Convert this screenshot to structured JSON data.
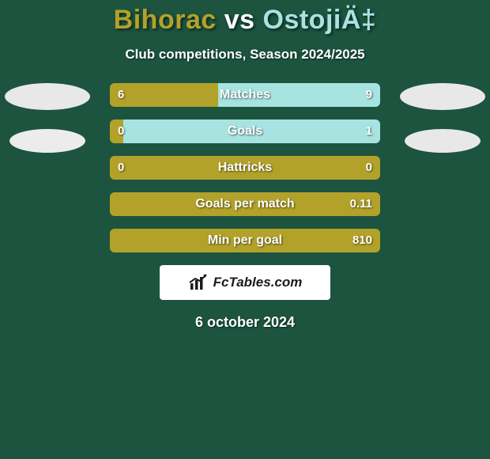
{
  "background_color": "#1c543f",
  "title": {
    "player_a": "Bihorac",
    "vs": "vs",
    "player_b": "OstojiÄ‡",
    "color_a": "#b2a22a",
    "color_vs": "#ffffff",
    "color_b": "#a7e3e0",
    "fontsize": 34
  },
  "subtitle": {
    "text": "Club competitions, Season 2024/2025",
    "fontsize": 17
  },
  "avatars": {
    "left_primary_color": "#e8e8e8",
    "left_secondary_color": "#ececec",
    "right_primary_color": "#e8e8e8",
    "right_secondary_color": "#e8e8e8"
  },
  "bar_style": {
    "height": 30,
    "radius": 6,
    "label_fontsize": 16,
    "value_fontsize": 15,
    "label_color": "#ffffff",
    "value_color": "#ffffff",
    "color_a": "#b2a22a",
    "color_b": "#a7e3e0"
  },
  "rows": [
    {
      "label": "Matches",
      "left": "6",
      "right": "9",
      "split_pct": 40
    },
    {
      "label": "Goals",
      "left": "0",
      "right": "1",
      "split_pct": 5
    },
    {
      "label": "Hattricks",
      "left": "0",
      "right": "0",
      "split_pct": 100
    },
    {
      "label": "Goals per match",
      "left": "",
      "right": "0.11",
      "split_pct": 100
    },
    {
      "label": "Min per goal",
      "left": "",
      "right": "810",
      "split_pct": 100
    }
  ],
  "footer": {
    "brand_text": "FcTables.com",
    "background": "#ffffff",
    "text_color": "#1b1b1b",
    "icon_color": "#1b1b1b"
  },
  "date": {
    "text": "6 october 2024",
    "fontsize": 18
  }
}
